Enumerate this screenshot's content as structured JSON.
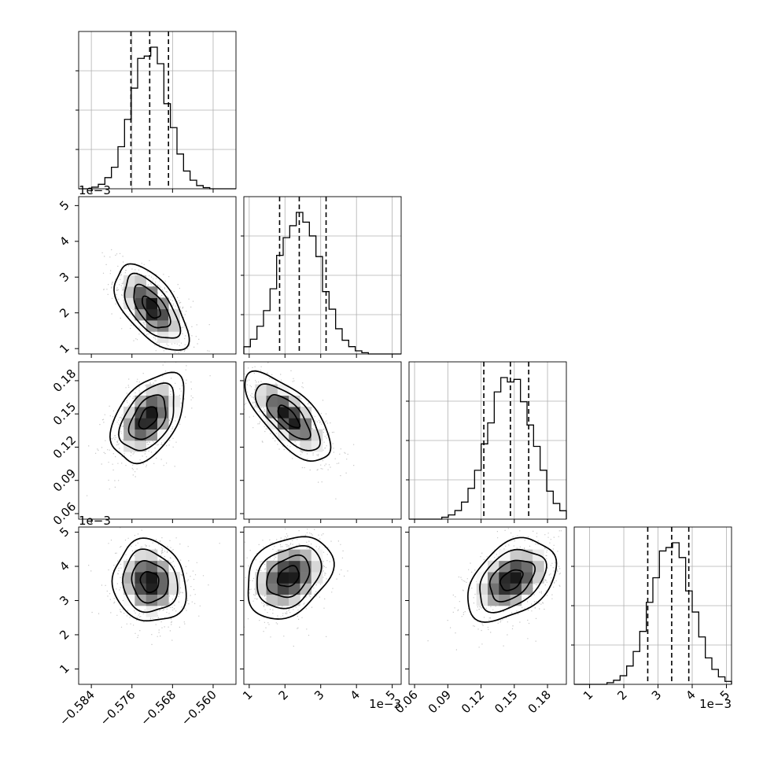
{
  "chart_data": {
    "type": "corner",
    "n_params": 4,
    "params": [
      {
        "range": [
          -0.5865,
          -0.5555
        ],
        "ticks": [
          -0.584,
          -0.576,
          -0.568,
          -0.56
        ],
        "tick_labels": [
          "−0.584",
          "−0.576",
          "−0.568",
          "−0.560"
        ],
        "offset": "",
        "median": -0.5725,
        "q16": -0.5762,
        "q84": -0.5688,
        "sd": 0.0036,
        "hist_bins": 24
      },
      {
        "range": [
          0.00085,
          0.00525
        ],
        "ticks": [
          0.001,
          0.002,
          0.003,
          0.004,
          0.005
        ],
        "tick_labels": [
          "1",
          "2",
          "3",
          "4",
          "5"
        ],
        "offset": "1e−3",
        "median": 0.0024,
        "q16": 0.00185,
        "q84": 0.00315,
        "sd": 0.0006,
        "hist_bins": 24
      },
      {
        "range": [
          0.055,
          0.197
        ],
        "ticks": [
          0.06,
          0.09,
          0.12,
          0.15,
          0.18
        ],
        "tick_labels": [
          "0.06",
          "0.09",
          "0.12",
          "0.15",
          "0.18"
        ],
        "offset": "",
        "median": 0.1465,
        "q16": 0.1225,
        "q84": 0.163,
        "sd": 0.02,
        "hist_bins": 24
      },
      {
        "range": [
          0.00055,
          0.00515
        ],
        "ticks": [
          0.001,
          0.002,
          0.003,
          0.004,
          0.005
        ],
        "tick_labels": [
          "1",
          "2",
          "3",
          "4",
          "5"
        ],
        "offset": "1e−3",
        "median": 0.0034,
        "q16": 0.0027,
        "q84": 0.0039,
        "sd": 0.0006,
        "hist_bins": 24
      }
    ],
    "correlations": [
      {
        "i": 1,
        "j": 0,
        "rho": -0.6,
        "peak": [
          -0.5722,
          0.00215
        ]
      },
      {
        "i": 2,
        "j": 0,
        "rho": 0.45,
        "peak": [
          -0.5728,
          0.1465
        ]
      },
      {
        "i": 2,
        "j": 1,
        "rho": -0.7,
        "peak": [
          0.0021,
          0.1475
        ]
      },
      {
        "i": 3,
        "j": 0,
        "rho": -0.1,
        "peak": [
          -0.5725,
          0.00355
        ]
      },
      {
        "i": 3,
        "j": 1,
        "rho": 0.3,
        "peak": [
          0.0021,
          0.0037
        ]
      },
      {
        "i": 3,
        "j": 2,
        "rho": 0.4,
        "peak": [
          0.1475,
          0.0036
        ]
      }
    ],
    "quantiles_shown": [
      0.16,
      0.5,
      0.84
    ],
    "contour_levels_sigma": [
      0.5,
      1.0,
      1.5,
      2.0
    ],
    "grid": true,
    "title": "",
    "colors": {
      "contour": "#000000",
      "hist": "#000000",
      "points": "#808080",
      "grid": "#b0b0b0"
    }
  }
}
